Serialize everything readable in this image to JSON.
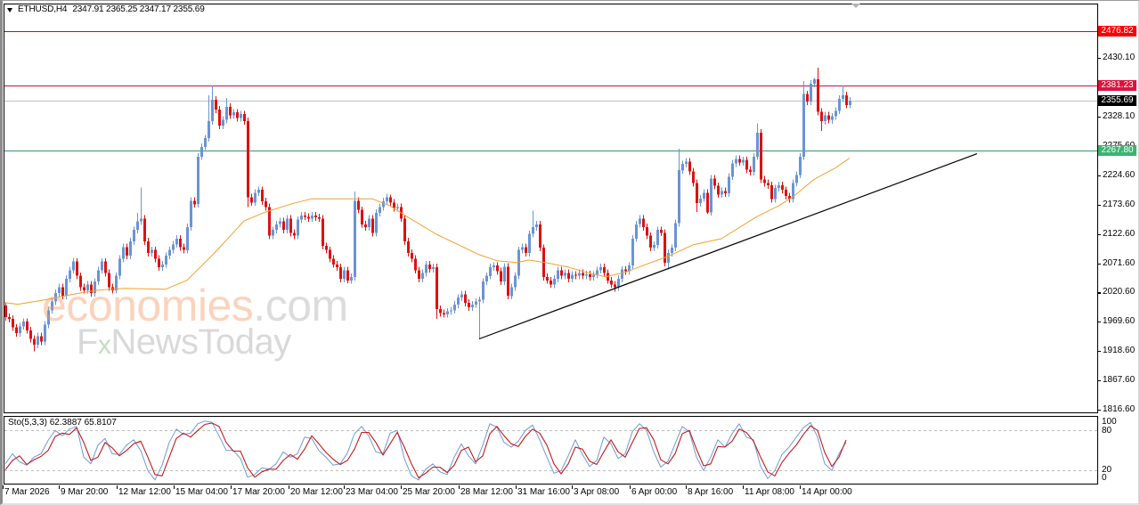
{
  "window": {
    "symbol": "ETHUSD,H4",
    "ohlc_header": "2347.91 2365.25 2347.17 2355.69",
    "header_icon": "dropdown-triangle-icon",
    "shift_marker_icon": "chart-shift-triangle-icon"
  },
  "price_axis": {
    "ticks": [
      "2430.10",
      "2379.10",
      "2328.10",
      "2275.60",
      "2224.60",
      "2173.60",
      "2122.60",
      "2071.60",
      "2020.60",
      "1969.60",
      "1918.60",
      "1867.60",
      "1816.60"
    ]
  },
  "levels": [
    {
      "value": "2476.82",
      "bg": "#ff0000"
    },
    {
      "value": "2381.23",
      "bg": "#dc143c"
    },
    {
      "value": "2355.69",
      "bg": "#000000"
    },
    {
      "value": "2267.80",
      "bg": "#3cb371"
    }
  ],
  "indicator": {
    "label": "Sto(5,3,3) 62.3887 65.8107",
    "scale": [
      "100",
      "80",
      "20",
      "0"
    ]
  },
  "time_axis": {
    "labels": [
      "7 Mar 2026",
      "9 Mar 20:00",
      "12 Mar 12:00",
      "15 Mar 04:00",
      "17 Mar 20:00",
      "20 Mar 12:00",
      "23 Mar 04:00",
      "25 Mar 20:00",
      "28 Mar 12:00",
      "31 Mar 16:00",
      "3 Apr 08:00",
      "6 Apr 00:00",
      "8 Apr 16:00",
      "11 Apr 08:00",
      "14 Apr 00:00"
    ]
  },
  "watermark": {
    "part1": "economies",
    "part2": ".com",
    "part3a": "F",
    "part3b": "x",
    "part3c": "NewsToday"
  },
  "chart_data": {
    "type": "candlestick",
    "title": "ETHUSD,H4",
    "symbol": "ETHUSD",
    "timeframe": "H4",
    "header_ohlc": {
      "open": 2347.91,
      "high": 2365.25,
      "low": 2347.17,
      "close": 2355.69
    },
    "xlabel": "",
    "ylabel": "",
    "x_tick_labels": [
      "7 Mar 2026",
      "9 Mar 20:00",
      "12 Mar 12:00",
      "15 Mar 04:00",
      "17 Mar 20:00",
      "20 Mar 12:00",
      "23 Mar 04:00",
      "25 Mar 20:00",
      "28 Mar 12:00",
      "31 Mar 16:00",
      "3 Apr 08:00",
      "6 Apr 00:00",
      "8 Apr 16:00",
      "11 Apr 08:00",
      "14 Apr 00:00"
    ],
    "y_tick_labels": [
      2430.1,
      2379.1,
      2328.1,
      2275.6,
      2224.6,
      2173.6,
      2122.6,
      2071.6,
      2020.6,
      1969.6,
      1918.6,
      1867.6,
      1816.6
    ],
    "ylim": [
      1816.6,
      2500
    ],
    "grid": false,
    "current_price": 2355.69,
    "candles": {
      "bull_color": "#6a94d4",
      "bear_color": "#dd1111",
      "first_open": 1998,
      "default_wick": 6,
      "close": [
        1978,
        1975,
        1960,
        1950,
        1962,
        1970,
        1955,
        1940,
        1930,
        1945,
        1935,
        1965,
        1990,
        2005,
        2020,
        2030,
        2015,
        2045,
        2060,
        2075,
        2050,
        2030,
        2025,
        2035,
        2020,
        2040,
        2060,
        2075,
        2055,
        2030,
        2025,
        2050,
        2080,
        2100,
        2085,
        2110,
        2130,
        2145,
        2150,
        2110,
        2090,
        2095,
        2080,
        2065,
        2070,
        2085,
        2095,
        2105,
        2115,
        2100,
        2095,
        2135,
        2181,
        2175,
        2258,
        2275,
        2290,
        2320,
        2357,
        2340,
        2312,
        2322,
        2345,
        2330,
        2335,
        2325,
        2332,
        2320,
        2187,
        2178,
        2195,
        2200,
        2180,
        2170,
        2120,
        2130,
        2140,
        2145,
        2130,
        2150,
        2125,
        2120,
        2148,
        2155,
        2153,
        2150,
        2155,
        2152,
        2150,
        2102,
        2095,
        2080,
        2070,
        2065,
        2045,
        2060,
        2042,
        2048,
        2181,
        2165,
        2140,
        2135,
        2150,
        2125,
        2160,
        2170,
        2180,
        2187,
        2178,
        2168,
        2170,
        2150,
        2110,
        2090,
        2080,
        2060,
        2045,
        2055,
        2070,
        2062,
        2065,
        1992,
        1985,
        1983,
        1988,
        1990,
        2000,
        2012,
        2018,
        2003,
        1995,
        2000,
        2005,
        2008,
        2040,
        2050,
        2065,
        2068,
        2058,
        2040,
        2066,
        2015,
        2030,
        2050,
        2095,
        2100,
        2090,
        2123,
        2135,
        2140,
        2099,
        2048,
        2042,
        2035,
        2045,
        2060,
        2050,
        2055,
        2045,
        2052,
        2050,
        2055,
        2050,
        2053,
        2048,
        2052,
        2060,
        2065,
        2055,
        2042,
        2035,
        2030,
        2045,
        2061,
        2058,
        2068,
        2115,
        2140,
        2150,
        2135,
        2120,
        2099,
        2104,
        2130,
        2125,
        2073,
        2090,
        2099,
        2142,
        2234,
        2245,
        2249,
        2232,
        2212,
        2177,
        2185,
        2195,
        2161,
        2220,
        2207,
        2192,
        2198,
        2194,
        2223,
        2246,
        2254,
        2248,
        2252,
        2235,
        2231,
        2258,
        2300,
        2218,
        2212,
        2208,
        2184,
        2203,
        2208,
        2200,
        2189,
        2184,
        2212,
        2226,
        2258,
        2367,
        2354,
        2385,
        2393,
        2336,
        2320,
        2330,
        2322,
        2328,
        2338,
        2359,
        2365,
        2348,
        2355.69
      ],
      "high_overrides": {
        "37": 2160,
        "38": 2204,
        "57": 2365,
        "58": 2382,
        "62": 2360,
        "98": 2197,
        "108": 2192,
        "148": 2164,
        "189": 2272,
        "211": 2316,
        "224": 2390,
        "227": 2395,
        "228": 2413,
        "235": 2382
      },
      "low_overrides": {
        "8": 1918,
        "68": 2170,
        "96": 2037,
        "121": 1975,
        "133": 1940,
        "171": 2022,
        "186": 2061,
        "194": 2161,
        "197": 2158,
        "229": 2303,
        "232": 2315
      }
    },
    "moving_average": {
      "color": "#f0a030",
      "points": [
        [
          -0.5,
          2003.5
        ],
        [
          3.5,
          2000.4
        ],
        [
          11,
          2008.1
        ],
        [
          18.5,
          2017.4
        ],
        [
          26,
          2025.1
        ],
        [
          33.5,
          2028.2
        ],
        [
          45,
          2026.7
        ],
        [
          51,
          2042.2
        ],
        [
          58.5,
          2088.5
        ],
        [
          67,
          2145.7
        ],
        [
          73,
          2161.2
        ],
        [
          81,
          2176.6
        ],
        [
          86,
          2184.4
        ],
        [
          95,
          2184.4
        ],
        [
          103,
          2184.4
        ],
        [
          108,
          2172.0
        ],
        [
          113.5,
          2150.4
        ],
        [
          121,
          2122.5
        ],
        [
          133,
          2087.0
        ],
        [
          138,
          2076.2
        ],
        [
          143.5,
          2073.1
        ],
        [
          147,
          2077.7
        ],
        [
          153,
          2071.5
        ],
        [
          158,
          2065.3
        ],
        [
          163,
          2056.1
        ],
        [
          168.5,
          2048.3
        ],
        [
          174,
          2056.1
        ],
        [
          178.5,
          2066.9
        ],
        [
          186,
          2083.9
        ],
        [
          193,
          2104.0
        ],
        [
          201,
          2114.8
        ],
        [
          211,
          2153.4
        ],
        [
          217,
          2172.0
        ],
        [
          221,
          2187.4
        ],
        [
          227,
          2218.3
        ],
        [
          233,
          2238.4
        ],
        [
          237,
          2255.4
        ]
      ]
    },
    "horizontal_levels": [
      {
        "price": 2476.82,
        "color": "#e60000"
      },
      {
        "price": 2381.23,
        "color": "#c8103c"
      },
      {
        "price": 2355.69,
        "color": "#c0c0c0"
      },
      {
        "price": 2267.8,
        "color": "#2e9a6a"
      }
    ],
    "trendline": {
      "start": [
        133,
        1940
      ],
      "end": [
        272.75,
        2263
      ],
      "color": "#000000"
    },
    "stochastic": {
      "name": "Sto(5,3,3)",
      "last_k": 62.3887,
      "last_d": 65.8107,
      "ylim": [
        0,
        100
      ],
      "levels": [
        80,
        20
      ],
      "sample_step_candles": 2,
      "k_color": "#6f9ad8",
      "d_color": "#c41a1a",
      "k": [
        30,
        45,
        33,
        28,
        40,
        45,
        65,
        80,
        72,
        82,
        86,
        40,
        30,
        58,
        68,
        45,
        44,
        58,
        66,
        50,
        20,
        6,
        28,
        62,
        82,
        74,
        76,
        90,
        94,
        92,
        72,
        50,
        50,
        38,
        10,
        14,
        24,
        22,
        30,
        48,
        40,
        45,
        70,
        68,
        50,
        40,
        28,
        30,
        46,
        75,
        86,
        72,
        48,
        45,
        76,
        80,
        38,
        12,
        6,
        22,
        30,
        18,
        14,
        40,
        60,
        42,
        30,
        58,
        90,
        85,
        62,
        55,
        64,
        80,
        88,
        66,
        40,
        16,
        20,
        42,
        66,
        44,
        26,
        35,
        70,
        60,
        38,
        45,
        78,
        90,
        80,
        48,
        25,
        34,
        60,
        86,
        78,
        40,
        20,
        40,
        66,
        55,
        75,
        90,
        70,
        66,
        26,
        8,
        20,
        44,
        55,
        70,
        84,
        92,
        70,
        30,
        20,
        45,
        62.39
      ],
      "d": [
        21,
        35,
        42,
        29,
        36,
        41,
        50,
        71,
        76,
        74,
        84,
        62,
        35,
        40,
        62,
        54,
        42,
        50,
        60,
        64,
        40,
        14,
        12,
        40,
        68,
        76,
        70,
        80,
        89,
        91,
        86,
        62,
        49,
        49,
        24,
        10,
        18,
        22,
        22,
        35,
        44,
        37,
        52,
        72,
        60,
        47,
        37,
        29,
        35,
        52,
        77,
        77,
        62,
        43,
        60,
        77,
        55,
        30,
        9,
        16,
        25,
        25,
        17,
        28,
        50,
        55,
        33,
        42,
        75,
        86,
        72,
        60,
        56,
        71,
        82,
        76,
        58,
        30,
        15,
        30,
        55,
        52,
        34,
        29,
        48,
        66,
        48,
        40,
        62,
        83,
        84,
        66,
        36,
        30,
        45,
        75,
        80,
        52,
        27,
        30,
        56,
        55,
        64,
        82,
        77,
        64,
        40,
        18,
        12,
        32,
        46,
        58,
        74,
        87,
        80,
        47,
        26,
        40,
        65.81
      ]
    }
  }
}
